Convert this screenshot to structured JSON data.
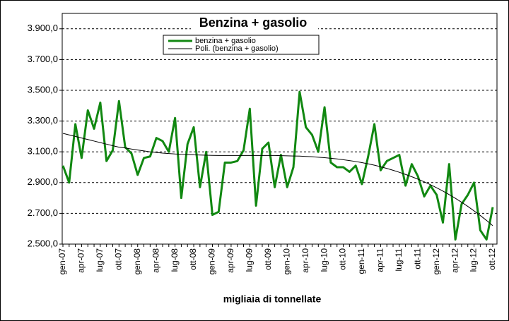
{
  "chart_data": {
    "type": "line",
    "title": "Benzina + gasolio",
    "x_label": "migliaia di tonnellate",
    "categories": [
      "gen-07",
      null,
      null,
      "apr-07",
      null,
      null,
      "lug-07",
      null,
      null,
      "ott-07",
      null,
      null,
      "gen-08",
      null,
      null,
      "apr-08",
      null,
      null,
      "lug-08",
      null,
      null,
      "ott-08",
      null,
      null,
      "gen-09",
      null,
      null,
      "apr-09",
      null,
      null,
      "lug-09",
      null,
      null,
      "ott-09",
      null,
      null,
      "gen-10",
      null,
      null,
      "apr-10",
      null,
      null,
      "lug-10",
      null,
      null,
      "ott-10",
      null,
      null,
      "gen-11",
      null,
      null,
      "apr-11",
      null,
      null,
      "lug-11",
      null,
      null,
      "ott-11",
      null,
      null,
      "gen-12",
      null,
      null,
      "apr-12",
      null,
      null,
      "lug-12",
      null,
      null,
      "ott-12"
    ],
    "series": [
      {
        "name": "benzina + gasolio",
        "color": "#118811",
        "width": 3,
        "values": [
          3010,
          2900,
          3280,
          3060,
          3370,
          3250,
          3420,
          3040,
          3110,
          3430,
          3130,
          3090,
          2950,
          3060,
          3070,
          3190,
          3170,
          3100,
          3320,
          2800,
          3150,
          3260,
          2870,
          3100,
          2690,
          2710,
          3030,
          3030,
          3040,
          3110,
          3380,
          2750,
          3120,
          3160,
          2870,
          3080,
          2870,
          3000,
          3490,
          3260,
          3210,
          3100,
          3390,
          3030,
          3000,
          3000,
          2970,
          3010,
          2890,
          3070,
          3280,
          2980,
          3040,
          3060,
          3080,
          2880,
          3020,
          2940,
          2810,
          2880,
          2820,
          2640,
          3020,
          2530,
          2760,
          2820,
          2900,
          2590,
          2530,
          2740
        ]
      },
      {
        "name": "Poli. (benzina + gasolio)",
        "color": "#000000",
        "width": 1,
        "values": [
          3220,
          3210,
          3200,
          3190,
          3180,
          3170,
          3160,
          3150,
          3140,
          3130,
          3125,
          3118,
          3112,
          3106,
          3100,
          3096,
          3092,
          3089,
          3086,
          3084,
          3082,
          3080,
          3079,
          3078,
          3077,
          3076,
          3076,
          3076,
          3076,
          3076,
          3076,
          3076,
          3076,
          3076,
          3076,
          3075,
          3074,
          3073,
          3072,
          3070,
          3068,
          3065,
          3062,
          3058,
          3054,
          3049,
          3043,
          3037,
          3030,
          3022,
          3013,
          3003,
          2992,
          2980,
          2967,
          2953,
          2938,
          2922,
          2905,
          2886,
          2866,
          2845,
          2822,
          2798,
          2772,
          2745,
          2716,
          2686,
          2654,
          2620
        ]
      }
    ],
    "ylim": [
      2500,
      4000
    ],
    "yticks": [
      {
        "value": 2500,
        "label": "2.500,0"
      },
      {
        "value": 2700,
        "label": "2.700,0"
      },
      {
        "value": 2900,
        "label": "2.900,0"
      },
      {
        "value": 3100,
        "label": "3.100,0"
      },
      {
        "value": 3300,
        "label": "3.300,0"
      },
      {
        "value": 3500,
        "label": "3.500,0"
      },
      {
        "value": 3700,
        "label": "3.700,0"
      },
      {
        "value": 3900,
        "label": "3.900,0"
      }
    ],
    "grid": true
  }
}
